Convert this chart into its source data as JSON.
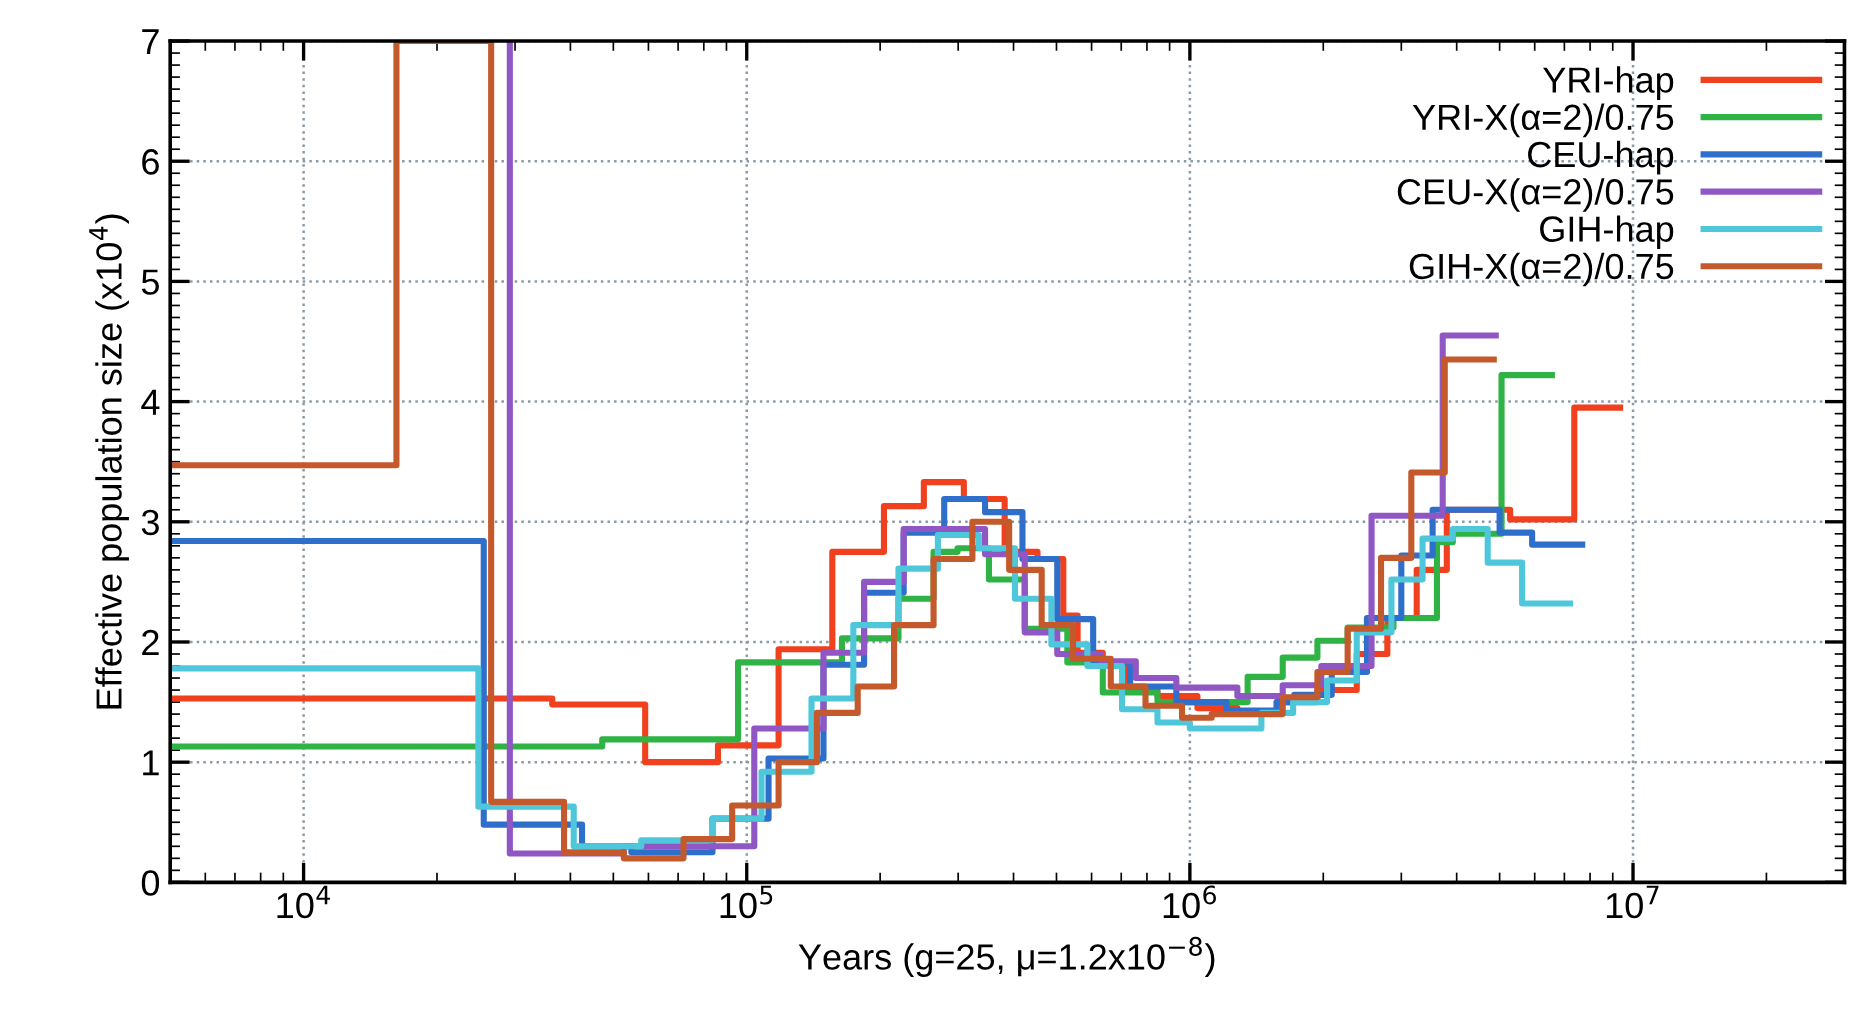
{
  "chart_data": {
    "type": "step",
    "xlabel": "Years (g=25, μ=1.2x10$^{−8}$)",
    "ylabel": "Effective population size (x10$^{4}$)",
    "log": "x",
    "xlim": [
      5000,
      30000000
    ],
    "xticks": [
      {
        "value": 10000,
        "label": "10$^{4}$"
      },
      {
        "value": 100000,
        "label": "10$^{5}$"
      },
      {
        "value": 1000000,
        "label": "10$^{6}$"
      },
      {
        "value": 10000000,
        "label": "10$^{7}$"
      }
    ],
    "ylim": [
      0,
      7
    ],
    "yticks": [
      0,
      1,
      2,
      3,
      4,
      5,
      6,
      7
    ],
    "grid": true,
    "legend": "top right",
    "line_style": "solid",
    "marker": "none",
    "series": [
      {
        "name": "YRI-hap",
        "color": "#f0401e",
        "x": [
          5000,
          36400,
          59000,
          86100,
          118000,
          156000,
          204000,
          251000,
          309000,
          382000,
          453000,
          518000,
          558000,
          636000,
          725000,
          845000,
          1040000,
          1280000,
          1570000,
          1940000,
          2380000,
          2790000,
          3250000,
          3800000,
          5280000,
          7370000,
          9350000
        ],
        "values": [
          1.53,
          1.48,
          1.0,
          1.14,
          1.94,
          2.75,
          3.13,
          3.33,
          3.19,
          2.75,
          2.69,
          2.22,
          1.91,
          1.8,
          1.62,
          1.55,
          1.45,
          1.42,
          1.5,
          1.6,
          1.9,
          2.2,
          2.6,
          3.1,
          3.02,
          3.95,
          3.95
        ]
      },
      {
        "name": "YRI-X(α=2)/0.75",
        "color": "#2fb344",
        "x": [
          5000,
          47200,
          95600,
          164000,
          220000,
          264000,
          299000,
          352000,
          424000,
          529000,
          636000,
          845000,
          1350000,
          1620000,
          1940000,
          2270000,
          2880000,
          3610000,
          3920000,
          5050000,
          6560000
        ],
        "values": [
          1.13,
          1.19,
          1.83,
          2.03,
          2.36,
          2.75,
          2.78,
          2.52,
          2.11,
          1.83,
          1.58,
          1.5,
          1.71,
          1.87,
          2.01,
          2.12,
          2.2,
          2.83,
          2.9,
          4.22,
          4.22
        ]
      },
      {
        "name": "CEU-hap",
        "color": "#2f6fcc",
        "x": [
          5000,
          25500,
          42500,
          54900,
          83700,
          112000,
          149000,
          184000,
          226000,
          279000,
          345000,
          419000,
          502000,
          605000,
          733000,
          932000,
          1210000,
          1570000,
          1720000,
          2090000,
          2510000,
          3000000,
          3530000,
          5000000,
          5920000,
          7680000
        ],
        "values": [
          2.84,
          0.48,
          0.3,
          0.25,
          0.53,
          1.03,
          1.81,
          2.41,
          2.91,
          3.19,
          3.08,
          2.69,
          2.19,
          1.83,
          1.63,
          1.5,
          1.43,
          1.5,
          1.56,
          1.75,
          2.2,
          2.72,
          3.1,
          2.91,
          2.81,
          2.81
        ]
      },
      {
        "name": "CEU-X(α=2)/0.75",
        "color": "#8f56c4",
        "x": [
          29200,
          29200,
          52800,
          104000,
          149000,
          184000,
          226000,
          345000,
          424000,
          502000,
          630000,
          755000,
          932000,
          1280000,
          1620000,
          1980000,
          2570000,
          3720000,
          4900000
        ],
        "values": [
          7,
          0.24,
          0.3,
          1.28,
          1.91,
          2.5,
          2.94,
          2.73,
          2.08,
          1.9,
          1.84,
          1.7,
          1.62,
          1.55,
          1.64,
          1.8,
          3.05,
          4.55,
          4.55
        ]
      },
      {
        "name": "GIH-hap",
        "color": "#4fc7db",
        "x": [
          5000,
          24800,
          40700,
          57800,
          83700,
          108000,
          140000,
          174000,
          220000,
          270000,
          334000,
          403000,
          487000,
          587000,
          703000,
          845000,
          1000000,
          1450000,
          1710000,
          2040000,
          2380000,
          2850000,
          3350000,
          3920000,
          4700000,
          5620000,
          7210000
        ],
        "values": [
          1.78,
          0.63,
          0.3,
          0.35,
          0.53,
          0.92,
          1.53,
          2.14,
          2.61,
          2.89,
          2.78,
          2.36,
          1.98,
          1.8,
          1.44,
          1.33,
          1.28,
          1.41,
          1.5,
          1.68,
          2.08,
          2.52,
          2.86,
          2.94,
          2.66,
          2.32,
          2.32
        ]
      },
      {
        "name": "GIH-X(α=2)/0.75",
        "color": "#c45a2c",
        "x": [
          5000,
          16200,
          26500,
          38700,
          52800,
          72000,
          92700,
          118000,
          144000,
          178000,
          215000,
          264000,
          323000,
          391000,
          463000,
          545000,
          663000,
          794000,
          960000,
          1120000,
          1620000,
          1940000,
          2270000,
          2700000,
          3160000,
          3760000,
          4850000
        ],
        "values": [
          3.47,
          7,
          0.67,
          0.25,
          0.2,
          0.36,
          0.64,
          1.0,
          1.41,
          1.63,
          2.14,
          2.69,
          3.0,
          2.6,
          2.14,
          1.86,
          1.63,
          1.47,
          1.37,
          1.4,
          1.54,
          1.75,
          2.11,
          2.7,
          3.41,
          4.35,
          4.35
        ]
      }
    ]
  }
}
